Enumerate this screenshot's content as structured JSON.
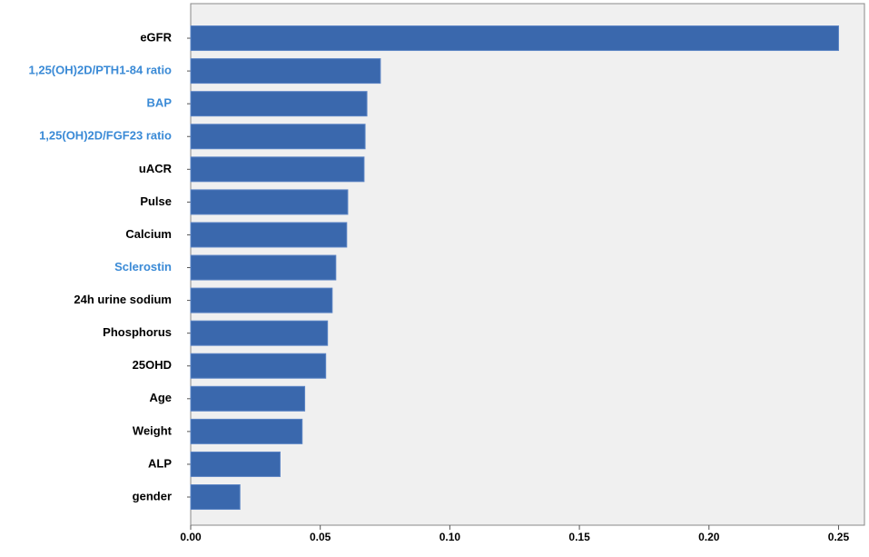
{
  "chart_data": {
    "type": "bar",
    "orientation": "horizontal",
    "categories": [
      "eGFR",
      "1,25(OH)2D/PTH1-84 ratio",
      "BAP",
      "1,25(OH)2D/FGF23 ratio",
      "uACR",
      "Pulse",
      "Calcium",
      "Sclerostin",
      "24h urine sodium",
      "Phosphorus",
      "25OHD",
      "Age",
      "Weight",
      "ALP",
      "gender"
    ],
    "category_colors": [
      "#000000",
      "#3a8ad6",
      "#3a8ad6",
      "#3a8ad6",
      "#000000",
      "#000000",
      "#000000",
      "#3a8ad6",
      "#000000",
      "#000000",
      "#000000",
      "#000000",
      "#000000",
      "#000000",
      "#000000"
    ],
    "values": [
      0.25,
      0.0732,
      0.068,
      0.0673,
      0.0669,
      0.0606,
      0.0602,
      0.056,
      0.0546,
      0.0528,
      0.0521,
      0.044,
      0.043,
      0.0345,
      0.019
    ],
    "color": "#3a68ad",
    "xlim": [
      0,
      0.26
    ],
    "xticks": [
      {
        "value": 0,
        "label": "0.00"
      },
      {
        "value": 0.05,
        "label": "0.05"
      },
      {
        "value": 0.1,
        "label": "0.10"
      },
      {
        "value": 0.15,
        "label": "0.15"
      },
      {
        "value": 0.2,
        "label": "0.20"
      },
      {
        "value": 0.25,
        "label": "0.25"
      }
    ]
  }
}
